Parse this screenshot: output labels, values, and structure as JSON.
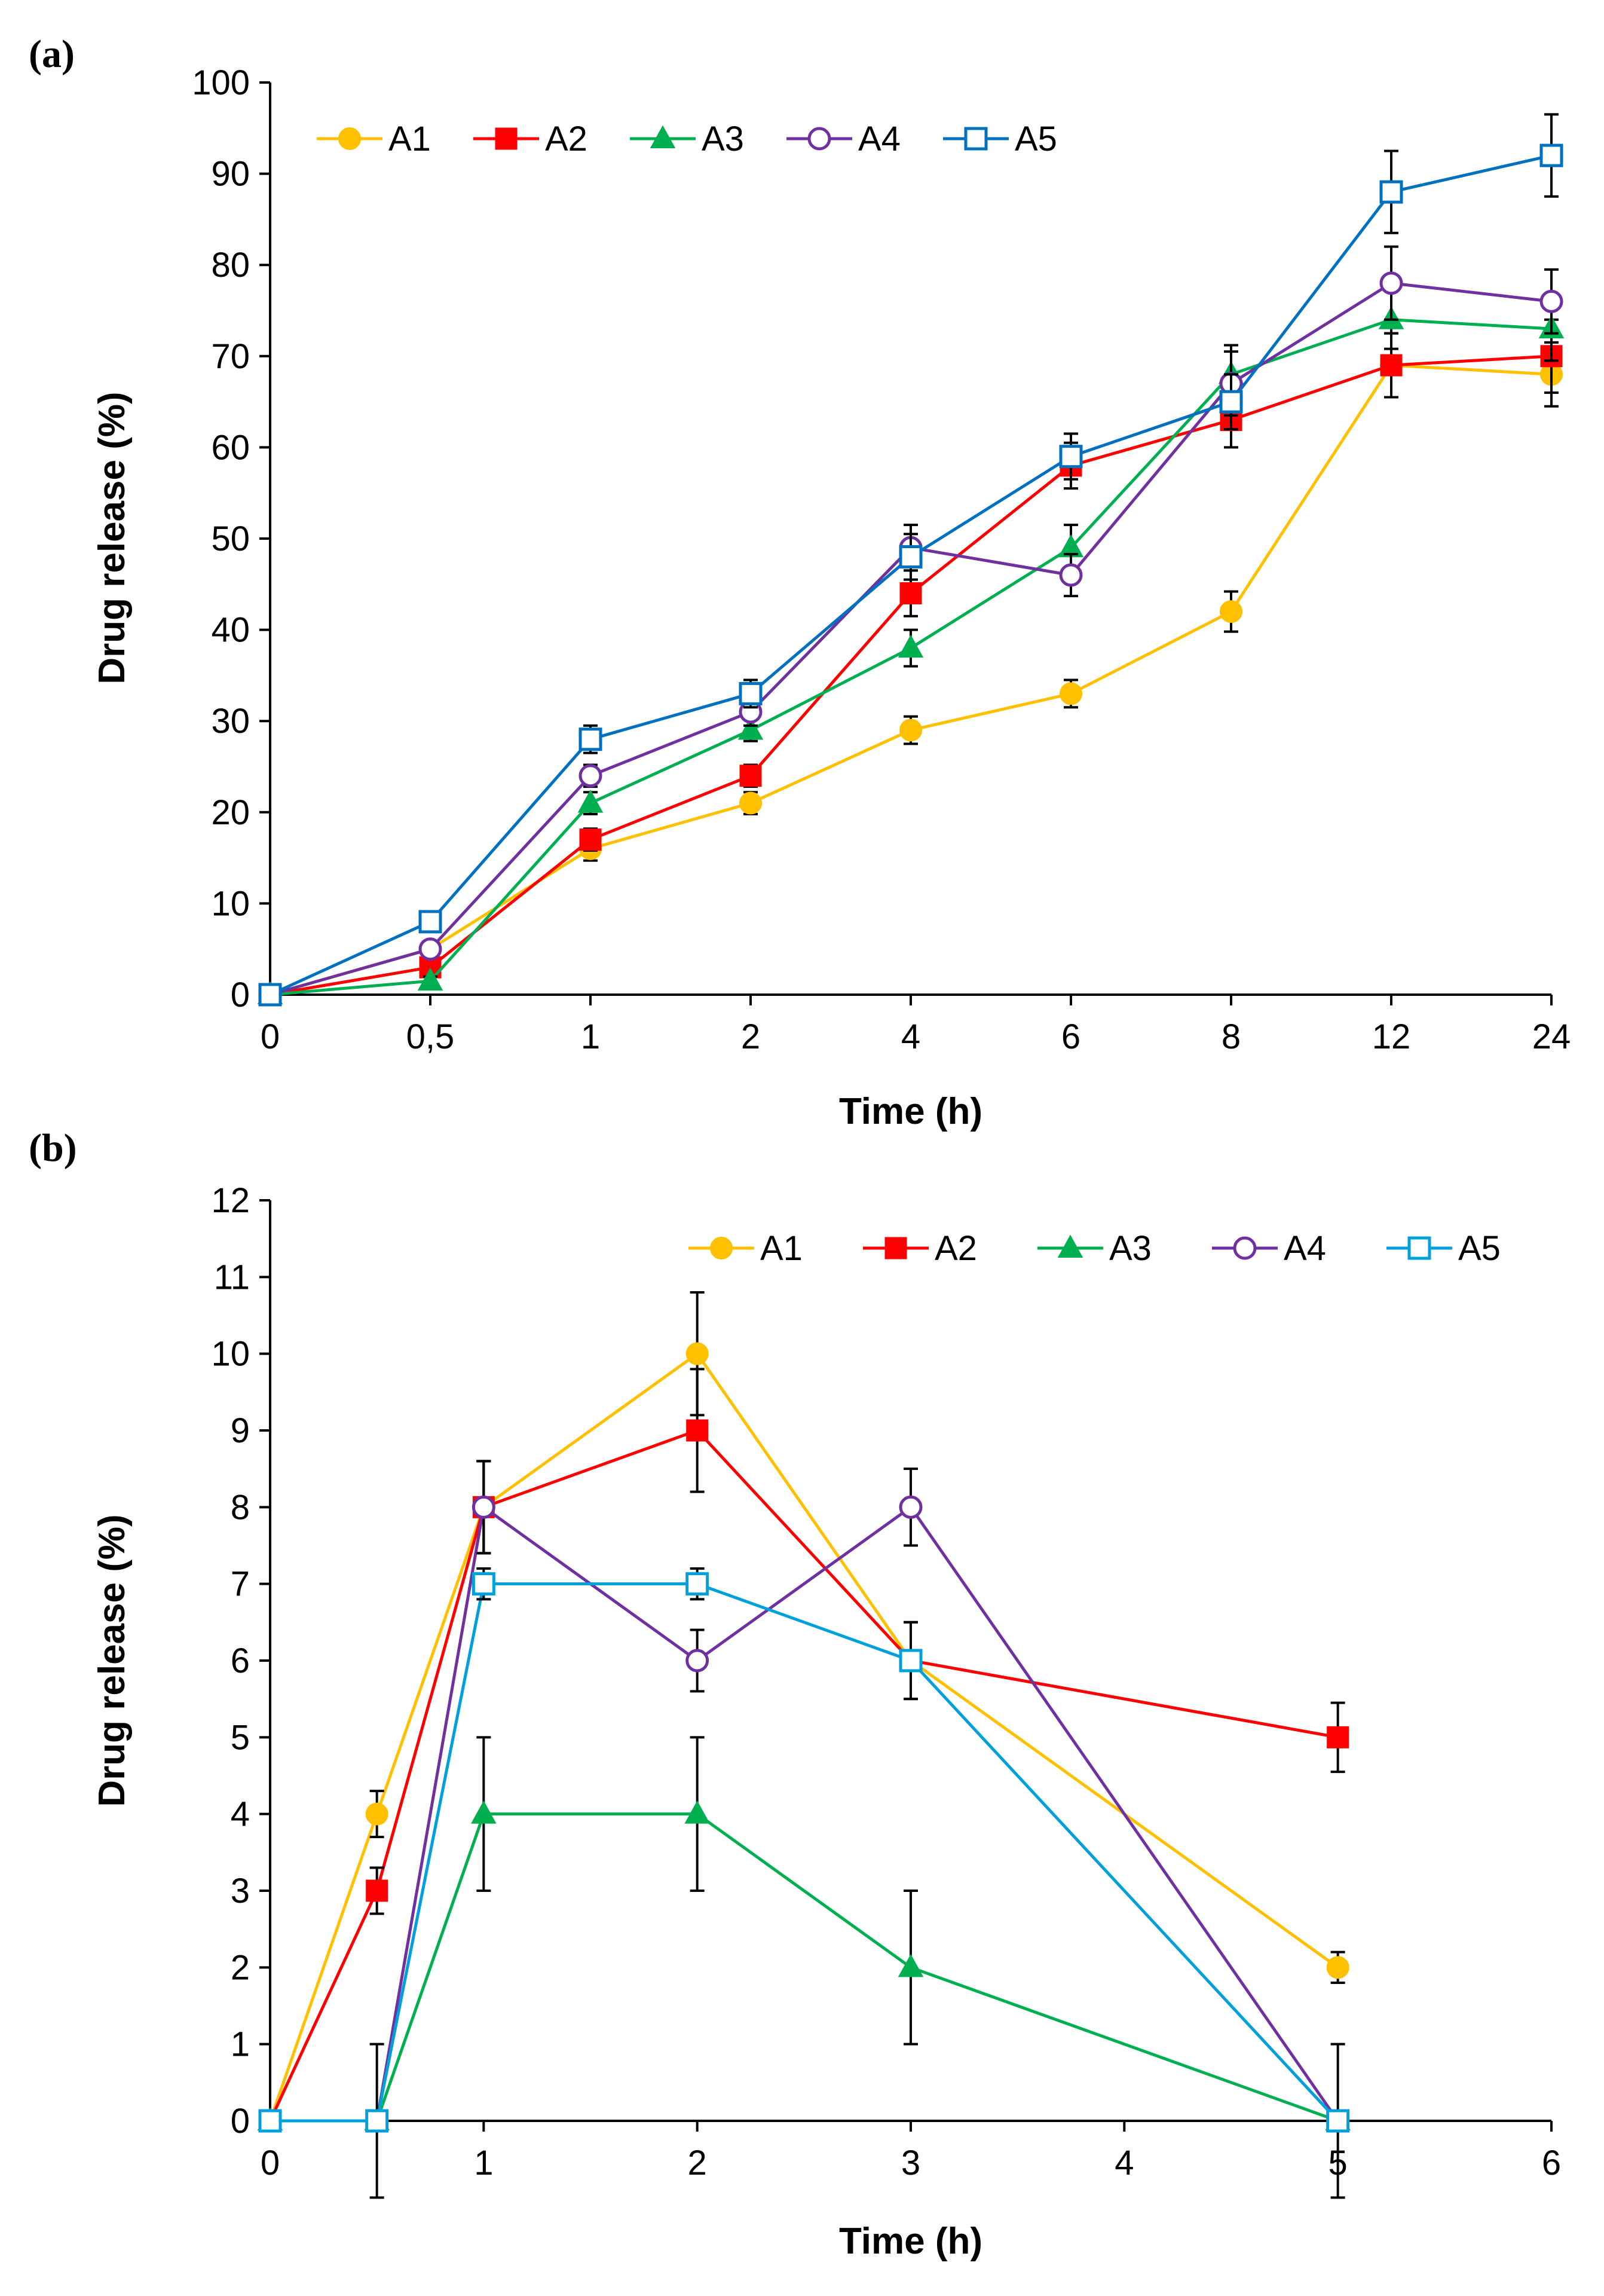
{
  "chart_data": [
    {
      "panel": "(a)",
      "type": "line",
      "xlabel": "Time (h)",
      "ylabel": "Drug release (%)",
      "categories": [
        "0",
        "0,5",
        "1",
        "2",
        "4",
        "6",
        "8",
        "12",
        "24"
      ],
      "ylim": [
        0,
        100
      ],
      "yticks": [
        "0",
        "10",
        "20",
        "30",
        "40",
        "50",
        "60",
        "70",
        "80",
        "90",
        "100"
      ],
      "legend": [
        "A1",
        "A2",
        "A3",
        "A4",
        "A5"
      ],
      "legend_position": "top-left",
      "series": [
        {
          "name": "A1",
          "color": "#FFC000",
          "marker": "circle-filled",
          "values": [
            0,
            5,
            16,
            21,
            29,
            33,
            42,
            69,
            68
          ],
          "errors": [
            0,
            0.5,
            1.3,
            1.2,
            1.5,
            1.5,
            2.2,
            3.5,
            3.5
          ]
        },
        {
          "name": "A2",
          "color": "#FF0000",
          "marker": "square-filled",
          "values": [
            0,
            3,
            17,
            24,
            44,
            58,
            63,
            69,
            70
          ],
          "errors": [
            0,
            0.5,
            1.2,
            1.2,
            2.5,
            2.5,
            3,
            3.5,
            4
          ]
        },
        {
          "name": "A3",
          "color": "#00B050",
          "marker": "triangle-filled",
          "values": [
            0,
            1.5,
            21,
            29,
            38,
            49,
            68,
            74,
            73
          ],
          "errors": [
            0,
            0.5,
            1.2,
            1.2,
            2,
            2.5,
            3.2,
            3.2,
            3.5
          ]
        },
        {
          "name": "A4",
          "color": "#7030A0",
          "marker": "circle-open",
          "values": [
            0,
            5,
            24,
            31,
            49,
            46,
            67,
            78,
            76
          ],
          "errors": [
            0,
            0.5,
            1.2,
            1.5,
            2.5,
            2.3,
            3.5,
            4,
            3.5
          ]
        },
        {
          "name": "A5",
          "color": "#0070C0",
          "marker": "square-open",
          "values": [
            0,
            8,
            28,
            33,
            48,
            59,
            65,
            88,
            92
          ],
          "errors": [
            0,
            0.5,
            1.5,
            1.5,
            2.5,
            2.5,
            3,
            4.5,
            4.5
          ]
        }
      ]
    },
    {
      "panel": "(b)",
      "type": "line",
      "xlabel": "Time (h)",
      "ylabel": "Drug release (%)",
      "xlim": [
        0,
        6
      ],
      "xticks": [
        "0",
        "1",
        "2",
        "3",
        "4",
        "5",
        "6"
      ],
      "ylim": [
        0,
        12
      ],
      "yticks": [
        "0",
        "1",
        "2",
        "3",
        "4",
        "5",
        "6",
        "7",
        "8",
        "9",
        "10",
        "11",
        "12"
      ],
      "legend": [
        "A1",
        "A2",
        "A3",
        "A4",
        "A5"
      ],
      "legend_position": "top-right",
      "series": [
        {
          "name": "A1",
          "color": "#FFC000",
          "marker": "circle-filled",
          "x": [
            0,
            0.5,
            1,
            2,
            3,
            5
          ],
          "values": [
            0,
            4,
            8,
            10,
            6,
            2
          ],
          "errors": [
            0,
            0.3,
            0.6,
            0.8,
            0.5,
            0.2
          ]
        },
        {
          "name": "A2",
          "color": "#FF0000",
          "marker": "square-filled",
          "x": [
            0,
            0.5,
            1,
            2,
            3,
            5
          ],
          "values": [
            0,
            3,
            8,
            9,
            6,
            5
          ],
          "errors": [
            0,
            0.3,
            0.6,
            0.8,
            0.5,
            0.45
          ]
        },
        {
          "name": "A3",
          "color": "#00B050",
          "marker": "triangle-filled",
          "x": [
            0,
            0.5,
            1,
            2,
            3,
            5
          ],
          "values": [
            0,
            0,
            4,
            4,
            2,
            0
          ],
          "errors": [
            0,
            0,
            1,
            1,
            1,
            0
          ]
        },
        {
          "name": "A4",
          "color": "#7030A0",
          "marker": "circle-open",
          "x": [
            0,
            0.5,
            1,
            2,
            3,
            5
          ],
          "values": [
            0,
            0,
            8,
            6,
            8,
            0
          ],
          "errors": [
            0,
            0,
            0.6,
            0.4,
            0.5,
            1
          ]
        },
        {
          "name": "A5",
          "color": "#00A0DC",
          "marker": "square-open",
          "x": [
            0,
            0.5,
            1,
            2,
            3,
            5
          ],
          "values": [
            0,
            0,
            7,
            7,
            6,
            0
          ],
          "errors": [
            0,
            1,
            0.2,
            0.2,
            0.5,
            0
          ]
        }
      ]
    }
  ]
}
